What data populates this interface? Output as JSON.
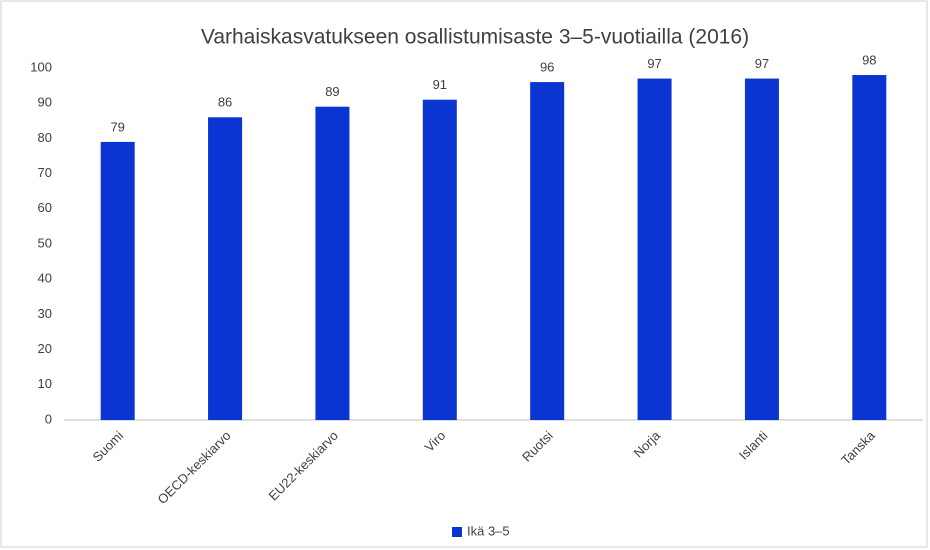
{
  "chart_data": {
    "type": "bar",
    "title": "Varhaiskasvatukseen osallistumisaste 3–5-vuotiailla (2016)",
    "categories": [
      "Suomi",
      "OECD-keskiarvo",
      "EU22-keskiarvo",
      "Viro",
      "Ruotsi",
      "Norja",
      "Islanti",
      "Tanska"
    ],
    "series": [
      {
        "name": "Ikä 3–5",
        "color": "#0a35d2",
        "values": [
          79,
          86,
          89,
          91,
          96,
          97,
          97,
          98
        ]
      }
    ],
    "ylim": [
      0,
      100
    ],
    "yticks": [
      0,
      10,
      20,
      30,
      40,
      50,
      60,
      70,
      80,
      90,
      100
    ],
    "grid": false,
    "legend": "bottom"
  }
}
